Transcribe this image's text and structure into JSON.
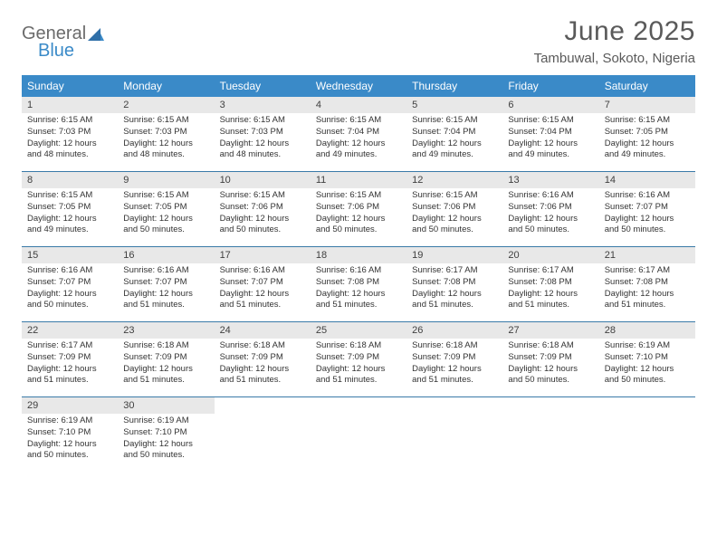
{
  "brand": {
    "general": "General",
    "blue": "Blue"
  },
  "title": "June 2025",
  "location": "Tambuwal, Sokoto, Nigeria",
  "style": {
    "header_bg": "#3a8ac8",
    "header_text": "#ffffff",
    "daynum_bg": "#e8e8e8",
    "week_border": "#3a7aa8",
    "body_text": "#333333",
    "title_color": "#5a5a5a",
    "logo_gray": "#6b6b6b",
    "logo_blue": "#3a8ac8",
    "page_bg": "#ffffff",
    "title_fontsize": 30,
    "location_fontsize": 15,
    "dow_fontsize": 12,
    "daynum_fontsize": 11,
    "cell_fontsize": 9.5
  },
  "days_of_week": [
    "Sunday",
    "Monday",
    "Tuesday",
    "Wednesday",
    "Thursday",
    "Friday",
    "Saturday"
  ],
  "weeks": [
    [
      {
        "n": "1",
        "sr": "Sunrise: 6:15 AM",
        "ss": "Sunset: 7:03 PM",
        "dl": "Daylight: 12 hours and 48 minutes."
      },
      {
        "n": "2",
        "sr": "Sunrise: 6:15 AM",
        "ss": "Sunset: 7:03 PM",
        "dl": "Daylight: 12 hours and 48 minutes."
      },
      {
        "n": "3",
        "sr": "Sunrise: 6:15 AM",
        "ss": "Sunset: 7:03 PM",
        "dl": "Daylight: 12 hours and 48 minutes."
      },
      {
        "n": "4",
        "sr": "Sunrise: 6:15 AM",
        "ss": "Sunset: 7:04 PM",
        "dl": "Daylight: 12 hours and 49 minutes."
      },
      {
        "n": "5",
        "sr": "Sunrise: 6:15 AM",
        "ss": "Sunset: 7:04 PM",
        "dl": "Daylight: 12 hours and 49 minutes."
      },
      {
        "n": "6",
        "sr": "Sunrise: 6:15 AM",
        "ss": "Sunset: 7:04 PM",
        "dl": "Daylight: 12 hours and 49 minutes."
      },
      {
        "n": "7",
        "sr": "Sunrise: 6:15 AM",
        "ss": "Sunset: 7:05 PM",
        "dl": "Daylight: 12 hours and 49 minutes."
      }
    ],
    [
      {
        "n": "8",
        "sr": "Sunrise: 6:15 AM",
        "ss": "Sunset: 7:05 PM",
        "dl": "Daylight: 12 hours and 49 minutes."
      },
      {
        "n": "9",
        "sr": "Sunrise: 6:15 AM",
        "ss": "Sunset: 7:05 PM",
        "dl": "Daylight: 12 hours and 50 minutes."
      },
      {
        "n": "10",
        "sr": "Sunrise: 6:15 AM",
        "ss": "Sunset: 7:06 PM",
        "dl": "Daylight: 12 hours and 50 minutes."
      },
      {
        "n": "11",
        "sr": "Sunrise: 6:15 AM",
        "ss": "Sunset: 7:06 PM",
        "dl": "Daylight: 12 hours and 50 minutes."
      },
      {
        "n": "12",
        "sr": "Sunrise: 6:15 AM",
        "ss": "Sunset: 7:06 PM",
        "dl": "Daylight: 12 hours and 50 minutes."
      },
      {
        "n": "13",
        "sr": "Sunrise: 6:16 AM",
        "ss": "Sunset: 7:06 PM",
        "dl": "Daylight: 12 hours and 50 minutes."
      },
      {
        "n": "14",
        "sr": "Sunrise: 6:16 AM",
        "ss": "Sunset: 7:07 PM",
        "dl": "Daylight: 12 hours and 50 minutes."
      }
    ],
    [
      {
        "n": "15",
        "sr": "Sunrise: 6:16 AM",
        "ss": "Sunset: 7:07 PM",
        "dl": "Daylight: 12 hours and 50 minutes."
      },
      {
        "n": "16",
        "sr": "Sunrise: 6:16 AM",
        "ss": "Sunset: 7:07 PM",
        "dl": "Daylight: 12 hours and 51 minutes."
      },
      {
        "n": "17",
        "sr": "Sunrise: 6:16 AM",
        "ss": "Sunset: 7:07 PM",
        "dl": "Daylight: 12 hours and 51 minutes."
      },
      {
        "n": "18",
        "sr": "Sunrise: 6:16 AM",
        "ss": "Sunset: 7:08 PM",
        "dl": "Daylight: 12 hours and 51 minutes."
      },
      {
        "n": "19",
        "sr": "Sunrise: 6:17 AM",
        "ss": "Sunset: 7:08 PM",
        "dl": "Daylight: 12 hours and 51 minutes."
      },
      {
        "n": "20",
        "sr": "Sunrise: 6:17 AM",
        "ss": "Sunset: 7:08 PM",
        "dl": "Daylight: 12 hours and 51 minutes."
      },
      {
        "n": "21",
        "sr": "Sunrise: 6:17 AM",
        "ss": "Sunset: 7:08 PM",
        "dl": "Daylight: 12 hours and 51 minutes."
      }
    ],
    [
      {
        "n": "22",
        "sr": "Sunrise: 6:17 AM",
        "ss": "Sunset: 7:09 PM",
        "dl": "Daylight: 12 hours and 51 minutes."
      },
      {
        "n": "23",
        "sr": "Sunrise: 6:18 AM",
        "ss": "Sunset: 7:09 PM",
        "dl": "Daylight: 12 hours and 51 minutes."
      },
      {
        "n": "24",
        "sr": "Sunrise: 6:18 AM",
        "ss": "Sunset: 7:09 PM",
        "dl": "Daylight: 12 hours and 51 minutes."
      },
      {
        "n": "25",
        "sr": "Sunrise: 6:18 AM",
        "ss": "Sunset: 7:09 PM",
        "dl": "Daylight: 12 hours and 51 minutes."
      },
      {
        "n": "26",
        "sr": "Sunrise: 6:18 AM",
        "ss": "Sunset: 7:09 PM",
        "dl": "Daylight: 12 hours and 51 minutes."
      },
      {
        "n": "27",
        "sr": "Sunrise: 6:18 AM",
        "ss": "Sunset: 7:09 PM",
        "dl": "Daylight: 12 hours and 50 minutes."
      },
      {
        "n": "28",
        "sr": "Sunrise: 6:19 AM",
        "ss": "Sunset: 7:10 PM",
        "dl": "Daylight: 12 hours and 50 minutes."
      }
    ],
    [
      {
        "n": "29",
        "sr": "Sunrise: 6:19 AM",
        "ss": "Sunset: 7:10 PM",
        "dl": "Daylight: 12 hours and 50 minutes."
      },
      {
        "n": "30",
        "sr": "Sunrise: 6:19 AM",
        "ss": "Sunset: 7:10 PM",
        "dl": "Daylight: 12 hours and 50 minutes."
      },
      null,
      null,
      null,
      null,
      null
    ]
  ]
}
